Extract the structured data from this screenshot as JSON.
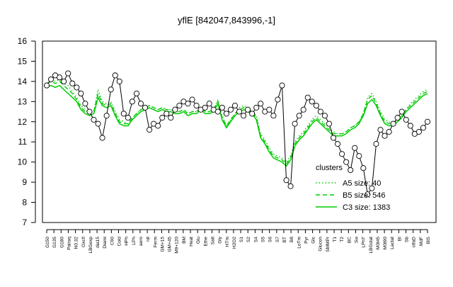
{
  "chart_data": {
    "type": "line",
    "title": "yflE [842047,843996,-1]",
    "xlabel": "",
    "ylabel": "",
    "ylim": [
      7,
      16
    ],
    "yticks": [
      7,
      8,
      9,
      10,
      11,
      12,
      13,
      14,
      15,
      16
    ],
    "grid": false,
    "legend_title": "clusters",
    "legend_position": "bottom-right",
    "series": [
      {
        "name": "A5 size: 40",
        "style": "dotted",
        "color": "#00cc00",
        "values": [
          13.9,
          14.1,
          14.0,
          14.1,
          13.9,
          13.8,
          13.5,
          13.2,
          12.8,
          12.6,
          12.4,
          12.5,
          13.6,
          13.0,
          12.9,
          13.0,
          12.5,
          12.1,
          12.0,
          11.9,
          12.2,
          12.4,
          12.6,
          12.7,
          12.8,
          12.7,
          12.6,
          12.7,
          12.6,
          12.6,
          12.5,
          12.5,
          12.6,
          12.4,
          12.5,
          12.5,
          12.7,
          12.5,
          12.5,
          12.6,
          13.1,
          12.3,
          11.8,
          12.1,
          12.4,
          12.7,
          12.8,
          12.7,
          12.5,
          12.3,
          11.4,
          11.1,
          10.7,
          10.4,
          10.3,
          10.2,
          10.0,
          10.3,
          11.0,
          11.3,
          11.5,
          11.8,
          12.1,
          12.3,
          12.1,
          11.9,
          11.7,
          11.5,
          11.4,
          11.4,
          11.5,
          11.7,
          11.8,
          12.0,
          12.4,
          13.2,
          13.4,
          13.0,
          12.5,
          12.1,
          12.0,
          11.9,
          12.1,
          12.3,
          12.6,
          12.9,
          13.1,
          13.3,
          13.5,
          13.6
        ]
      },
      {
        "name": "B5 size: 546",
        "style": "dashed",
        "color": "#00cc00",
        "values": [
          13.9,
          14.0,
          13.9,
          14.0,
          13.8,
          13.6,
          13.4,
          13.1,
          12.7,
          12.5,
          12.4,
          12.5,
          13.4,
          12.9,
          12.8,
          12.9,
          12.4,
          12.0,
          11.9,
          11.9,
          12.2,
          12.4,
          12.6,
          12.7,
          12.8,
          12.7,
          12.6,
          12.7,
          12.6,
          12.6,
          12.5,
          12.5,
          12.6,
          12.4,
          12.5,
          12.5,
          12.7,
          12.5,
          12.5,
          12.6,
          13.0,
          12.2,
          11.8,
          12.1,
          12.4,
          12.6,
          12.7,
          12.6,
          12.5,
          12.2,
          11.3,
          11.0,
          10.6,
          10.3,
          10.2,
          10.1,
          9.9,
          10.2,
          10.9,
          11.2,
          11.4,
          11.7,
          12.0,
          12.2,
          12.0,
          11.8,
          11.6,
          11.4,
          11.4,
          11.4,
          11.5,
          11.7,
          11.8,
          12.0,
          12.4,
          13.1,
          13.3,
          12.9,
          12.4,
          12.0,
          11.9,
          11.9,
          12.1,
          12.3,
          12.6,
          12.8,
          13.0,
          13.2,
          13.4,
          13.5
        ]
      },
      {
        "name": "C3 size: 1383",
        "style": "solid",
        "color": "#00cc00",
        "values": [
          13.7,
          13.8,
          13.7,
          13.8,
          13.6,
          13.4,
          13.2,
          13.0,
          12.6,
          12.4,
          12.3,
          12.4,
          13.2,
          12.8,
          12.7,
          12.8,
          12.3,
          11.9,
          11.8,
          11.8,
          12.1,
          12.3,
          12.5,
          12.6,
          12.7,
          12.6,
          12.5,
          12.6,
          12.5,
          12.5,
          12.4,
          12.4,
          12.5,
          12.3,
          12.4,
          12.4,
          12.6,
          12.4,
          12.4,
          12.5,
          12.9,
          12.1,
          11.7,
          12.0,
          12.3,
          12.5,
          12.6,
          12.5,
          12.4,
          12.1,
          11.2,
          10.9,
          10.5,
          10.2,
          10.1,
          10.0,
          9.8,
          10.1,
          10.8,
          11.1,
          11.3,
          11.6,
          11.9,
          12.1,
          11.9,
          11.7,
          11.5,
          11.3,
          11.3,
          11.3,
          11.4,
          11.6,
          11.7,
          11.9,
          12.3,
          12.9,
          13.1,
          12.8,
          12.3,
          11.9,
          11.8,
          11.8,
          12.0,
          12.2,
          12.5,
          12.7,
          12.9,
          13.1,
          13.3,
          13.4
        ]
      }
    ],
    "points": [
      {
        "x": 1,
        "y": 13.8
      },
      {
        "x": 2,
        "y": 14.1
      },
      {
        "x": 3,
        "y": 14.3
      },
      {
        "x": 4,
        "y": 14.2
      },
      {
        "x": 5,
        "y": 14.0
      },
      {
        "x": 6,
        "y": 14.4
      },
      {
        "x": 7,
        "y": 13.9
      },
      {
        "x": 8,
        "y": 13.7
      },
      {
        "x": 9,
        "y": 13.4
      },
      {
        "x": 10,
        "y": 12.9
      },
      {
        "x": 11,
        "y": 12.5
      },
      {
        "x": 12,
        "y": 12.1
      },
      {
        "x": 13,
        "y": 11.9
      },
      {
        "x": 14,
        "y": 11.2
      },
      {
        "x": 15,
        "y": 12.3
      },
      {
        "x": 16,
        "y": 13.6
      },
      {
        "x": 17,
        "y": 14.3
      },
      {
        "x": 18,
        "y": 14.0
      },
      {
        "x": 19,
        "y": 12.4
      },
      {
        "x": 20,
        "y": 12.2
      },
      {
        "x": 21,
        "y": 13.0
      },
      {
        "x": 22,
        "y": 13.4
      },
      {
        "x": 23,
        "y": 12.9
      },
      {
        "x": 24,
        "y": 12.7
      },
      {
        "x": 25,
        "y": 11.6
      },
      {
        "x": 26,
        "y": 11.9
      },
      {
        "x": 27,
        "y": 11.8
      },
      {
        "x": 28,
        "y": 12.2
      },
      {
        "x": 29,
        "y": 12.4
      },
      {
        "x": 30,
        "y": 12.2
      },
      {
        "x": 31,
        "y": 12.6
      },
      {
        "x": 32,
        "y": 12.8
      },
      {
        "x": 33,
        "y": 13.0
      },
      {
        "x": 34,
        "y": 12.9
      },
      {
        "x": 35,
        "y": 13.1
      },
      {
        "x": 36,
        "y": 12.8
      },
      {
        "x": 37,
        "y": 12.6
      },
      {
        "x": 38,
        "y": 12.7
      },
      {
        "x": 39,
        "y": 12.9
      },
      {
        "x": 40,
        "y": 12.6
      },
      {
        "x": 41,
        "y": 12.5
      },
      {
        "x": 42,
        "y": 12.7
      },
      {
        "x": 43,
        "y": 12.4
      },
      {
        "x": 44,
        "y": 12.6
      },
      {
        "x": 45,
        "y": 12.8
      },
      {
        "x": 46,
        "y": 12.5
      },
      {
        "x": 47,
        "y": 12.3
      },
      {
        "x": 48,
        "y": 12.6
      },
      {
        "x": 49,
        "y": 12.4
      },
      {
        "x": 50,
        "y": 12.7
      },
      {
        "x": 51,
        "y": 12.9
      },
      {
        "x": 52,
        "y": 12.5
      },
      {
        "x": 53,
        "y": 12.6
      },
      {
        "x": 54,
        "y": 12.3
      },
      {
        "x": 55,
        "y": 13.1
      },
      {
        "x": 56,
        "y": 13.8
      },
      {
        "x": 57,
        "y": 9.1
      },
      {
        "x": 58,
        "y": 8.8
      },
      {
        "x": 59,
        "y": 11.9
      },
      {
        "x": 60,
        "y": 12.3
      },
      {
        "x": 61,
        "y": 12.6
      },
      {
        "x": 62,
        "y": 13.2
      },
      {
        "x": 63,
        "y": 13.0
      },
      {
        "x": 64,
        "y": 12.8
      },
      {
        "x": 65,
        "y": 12.5
      },
      {
        "x": 66,
        "y": 12.3
      },
      {
        "x": 67,
        "y": 11.9
      },
      {
        "x": 68,
        "y": 11.2
      },
      {
        "x": 69,
        "y": 10.9
      },
      {
        "x": 70,
        "y": 10.4
      },
      {
        "x": 71,
        "y": 10.0
      },
      {
        "x": 72,
        "y": 9.6
      },
      {
        "x": 73,
        "y": 10.7
      },
      {
        "x": 74,
        "y": 10.3
      },
      {
        "x": 75,
        "y": 9.7
      },
      {
        "x": 76,
        "y": 8.4
      },
      {
        "x": 77,
        "y": 8.7
      },
      {
        "x": 78,
        "y": 10.9
      },
      {
        "x": 79,
        "y": 11.6
      },
      {
        "x": 80,
        "y": 11.3
      },
      {
        "x": 81,
        "y": 11.5
      },
      {
        "x": 82,
        "y": 11.9
      },
      {
        "x": 83,
        "y": 12.2
      },
      {
        "x": 84,
        "y": 12.5
      },
      {
        "x": 85,
        "y": 12.1
      },
      {
        "x": 86,
        "y": 11.8
      },
      {
        "x": 87,
        "y": 11.4
      },
      {
        "x": 88,
        "y": 11.5
      },
      {
        "x": 89,
        "y": 11.7
      },
      {
        "x": 90,
        "y": 12.0
      }
    ],
    "tick_labels": [
      "G150",
      "G135",
      "G180",
      "Pairaq",
      "N0.32",
      "Oxcfl",
      "LBGexp",
      "dia15",
      "Diami",
      "C90",
      "Cold",
      "HPh",
      "LPh",
      "aero",
      "nit",
      "Ferm",
      "GM+15",
      "GM+45",
      "M9+120",
      "BM",
      "Heat",
      "Glu",
      "Ethe",
      "Salt",
      "Gly",
      "HTm",
      "H2O2",
      "S1",
      "S2",
      "S4",
      "S5",
      "S6",
      "S7",
      "BT",
      "B8",
      "LoTm",
      "Pyr",
      "Glc",
      "Glucon",
      "SMMPr",
      "T1",
      "T2",
      "BC",
      "Sw",
      "LPhT",
      "LBGstat",
      "M0t45",
      "M0t90",
      "Lactat",
      "BI",
      "Sb",
      "ctfaD",
      "MdF",
      "BlS"
    ]
  }
}
